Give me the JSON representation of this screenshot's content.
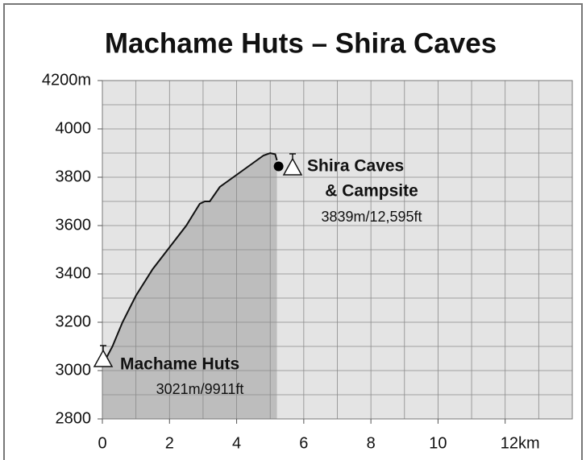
{
  "chart_data": {
    "type": "area",
    "title": "Machame Huts – Shira Caves",
    "x": [
      0,
      0.3,
      0.6,
      1,
      1.5,
      2,
      2.5,
      2.9,
      3.05,
      3.2,
      3.5,
      4,
      4.5,
      4.8,
      5,
      5.15,
      5.2
    ],
    "series": [
      {
        "color": "#111111",
        "values": [
          3021,
          3100,
          3200,
          3310,
          3420,
          3510,
          3600,
          3690,
          3700,
          3700,
          3760,
          3810,
          3860,
          3890,
          3900,
          3895,
          3870
        ]
      }
    ],
    "fill": "#bdbdbd",
    "background": "#e4e4e4",
    "xlim": [
      0,
      14
    ],
    "ylim": [
      2800,
      4200
    ],
    "xticks": [
      0,
      2,
      4,
      6,
      8,
      10,
      {
        "value": 12,
        "label": "12km"
      }
    ],
    "yticks": [
      {
        "value": 4200,
        "label": "4200m"
      },
      4000,
      3800,
      3600,
      3400,
      3200,
      3000,
      2800
    ],
    "grid_x": [
      1,
      2,
      3,
      4,
      5,
      6,
      7,
      8,
      9,
      10,
      11,
      12,
      13
    ],
    "grid_y": [
      2900,
      3000,
      3100,
      3200,
      3300,
      3400,
      3500,
      3600,
      3700,
      3800,
      3900,
      4000,
      4100
    ],
    "marker": {
      "x": 5.25,
      "y": 3845
    },
    "annotations": [
      "Shira Caves",
      "& Campsite",
      "3839m/12,595ft",
      "Machame Huts",
      "3021m/9911ft"
    ]
  }
}
